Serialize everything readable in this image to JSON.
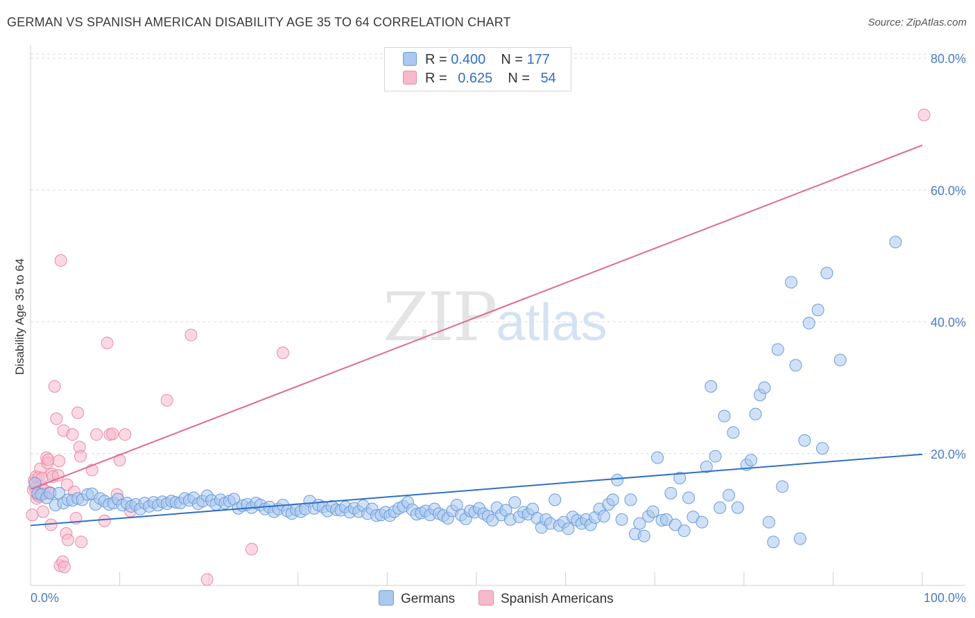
{
  "header": {
    "title": "GERMAN VS SPANISH AMERICAN DISABILITY AGE 35 TO 64 CORRELATION CHART",
    "source": "Source: ZipAtlas.com"
  },
  "watermark": {
    "zip": "ZIP",
    "atlas": "atlas"
  },
  "legend": {
    "rows": [
      {
        "r_label": "R = ",
        "r_value": "0.400",
        "n_label": "N = ",
        "n_value": "177",
        "color": "#aac8f0"
      },
      {
        "r_label": "R = ",
        "r_value": "0.625",
        "n_label": "N = ",
        "n_value": "54",
        "color": "#f7b9cc"
      }
    ]
  },
  "bottom_legend": {
    "germans": "Germans",
    "spanish": "Spanish Americans"
  },
  "colors": {
    "blue_fill": "#aac8f0",
    "blue_stroke": "#6a9bd8",
    "blue_line": "#2f6fc4",
    "pink_fill": "#f7b9cc",
    "pink_stroke": "#e88aa8",
    "pink_line": "#e06a92"
  },
  "chart_data": {
    "type": "scatter",
    "title": "GERMAN VS SPANISH AMERICAN DISABILITY AGE 35 TO 64 CORRELATION CHART",
    "xlabel": "",
    "ylabel": "Disability Age 35 to 64",
    "xlim": [
      0,
      100
    ],
    "ylim": [
      0,
      82
    ],
    "x_tick_labels": [
      "0.0%",
      "100.0%"
    ],
    "y_ticks": [
      20,
      40,
      60,
      80
    ],
    "y_tick_labels": [
      "20.0%",
      "40.0%",
      "60.0%",
      "80.0%"
    ],
    "grid": true,
    "series": [
      {
        "name": "Germans",
        "R": 0.4,
        "N": 177,
        "trend": {
          "x": [
            0,
            100
          ],
          "y": [
            9.1,
            19.9
          ]
        },
        "points": [
          [
            0.5,
            15.5
          ],
          [
            0.8,
            14.0
          ],
          [
            1.2,
            13.8
          ],
          [
            1.8,
            13.3
          ],
          [
            2.2,
            14.0
          ],
          [
            2.8,
            12.2
          ],
          [
            3.2,
            14.0
          ],
          [
            3.7,
            12.5
          ],
          [
            4.2,
            13.0
          ],
          [
            4.7,
            12.9
          ],
          [
            5.3,
            13.2
          ],
          [
            5.8,
            13.0
          ],
          [
            6.4,
            13.8
          ],
          [
            6.9,
            13.9
          ],
          [
            7.3,
            12.3
          ],
          [
            7.8,
            13.2
          ],
          [
            8.3,
            12.8
          ],
          [
            8.8,
            12.3
          ],
          [
            9.3,
            12.5
          ],
          [
            9.8,
            13.1
          ],
          [
            10.3,
            12.2
          ],
          [
            10.8,
            12.5
          ],
          [
            11.3,
            12.0
          ],
          [
            11.8,
            12.3
          ],
          [
            12.3,
            11.6
          ],
          [
            12.8,
            12.5
          ],
          [
            13.3,
            12.0
          ],
          [
            13.8,
            12.6
          ],
          [
            14.3,
            12.2
          ],
          [
            14.8,
            12.7
          ],
          [
            15.3,
            12.4
          ],
          [
            15.8,
            12.8
          ],
          [
            16.3,
            12.6
          ],
          [
            16.8,
            12.5
          ],
          [
            17.3,
            13.2
          ],
          [
            17.8,
            12.9
          ],
          [
            18.3,
            13.3
          ],
          [
            18.8,
            12.4
          ],
          [
            19.3,
            12.8
          ],
          [
            19.8,
            13.6
          ],
          [
            20.3,
            12.9
          ],
          [
            20.8,
            12.3
          ],
          [
            21.3,
            13.0
          ],
          [
            21.8,
            12.5
          ],
          [
            22.3,
            12.8
          ],
          [
            22.8,
            13.1
          ],
          [
            23.3,
            11.7
          ],
          [
            23.8,
            12.1
          ],
          [
            24.3,
            12.3
          ],
          [
            24.8,
            11.8
          ],
          [
            25.3,
            12.5
          ],
          [
            25.8,
            12.2
          ],
          [
            26.3,
            11.6
          ],
          [
            26.8,
            11.9
          ],
          [
            27.3,
            11.2
          ],
          [
            27.8,
            11.6
          ],
          [
            28.3,
            12.2
          ],
          [
            28.8,
            11.3
          ],
          [
            29.3,
            10.9
          ],
          [
            29.8,
            11.5
          ],
          [
            30.3,
            11.2
          ],
          [
            30.8,
            11.6
          ],
          [
            31.3,
            12.8
          ],
          [
            31.8,
            11.7
          ],
          [
            32.3,
            12.2
          ],
          [
            32.8,
            11.9
          ],
          [
            33.3,
            11.3
          ],
          [
            33.8,
            12.0
          ],
          [
            34.3,
            11.5
          ],
          [
            34.8,
            11.4
          ],
          [
            35.3,
            11.9
          ],
          [
            35.8,
            11.1
          ],
          [
            36.3,
            11.7
          ],
          [
            36.8,
            11.2
          ],
          [
            37.3,
            12.1
          ],
          [
            37.8,
            10.9
          ],
          [
            38.3,
            11.6
          ],
          [
            38.8,
            10.6
          ],
          [
            39.3,
            10.7
          ],
          [
            39.8,
            11.1
          ],
          [
            40.3,
            10.6
          ],
          [
            40.8,
            11.2
          ],
          [
            41.3,
            11.7
          ],
          [
            41.8,
            12.0
          ],
          [
            42.3,
            12.6
          ],
          [
            42.8,
            11.5
          ],
          [
            43.3,
            10.8
          ],
          [
            43.8,
            11.0
          ],
          [
            44.3,
            11.3
          ],
          [
            44.8,
            10.7
          ],
          [
            45.3,
            11.6
          ],
          [
            45.8,
            10.9
          ],
          [
            46.3,
            10.6
          ],
          [
            46.8,
            10.2
          ],
          [
            47.3,
            11.3
          ],
          [
            47.8,
            12.2
          ],
          [
            48.3,
            10.7
          ],
          [
            48.8,
            10.1
          ],
          [
            49.3,
            11.3
          ],
          [
            49.8,
            11.1
          ],
          [
            50.3,
            11.7
          ],
          [
            50.8,
            10.9
          ],
          [
            51.3,
            10.5
          ],
          [
            51.8,
            9.9
          ],
          [
            52.3,
            11.8
          ],
          [
            52.8,
            10.7
          ],
          [
            53.3,
            11.4
          ],
          [
            53.8,
            10.0
          ],
          [
            54.3,
            12.6
          ],
          [
            54.8,
            10.4
          ],
          [
            55.3,
            11.1
          ],
          [
            55.8,
            10.8
          ],
          [
            56.3,
            11.6
          ],
          [
            56.8,
            10.2
          ],
          [
            57.3,
            8.8
          ],
          [
            57.8,
            10.0
          ],
          [
            58.3,
            9.4
          ],
          [
            58.8,
            13.0
          ],
          [
            59.3,
            9.1
          ],
          [
            59.8,
            9.6
          ],
          [
            60.3,
            8.6
          ],
          [
            60.8,
            10.4
          ],
          [
            61.3,
            9.9
          ],
          [
            61.8,
            9.4
          ],
          [
            62.3,
            10.0
          ],
          [
            62.8,
            9.2
          ],
          [
            63.3,
            10.3
          ],
          [
            63.8,
            11.6
          ],
          [
            64.3,
            10.5
          ],
          [
            64.8,
            12.3
          ],
          [
            65.3,
            13.0
          ],
          [
            65.8,
            16.0
          ],
          [
            66.3,
            10.0
          ],
          [
            67.3,
            13.0
          ],
          [
            67.8,
            7.8
          ],
          [
            68.3,
            9.4
          ],
          [
            68.8,
            7.5
          ],
          [
            69.3,
            10.5
          ],
          [
            69.8,
            11.2
          ],
          [
            70.3,
            19.4
          ],
          [
            70.8,
            9.9
          ],
          [
            71.3,
            10.0
          ],
          [
            71.8,
            14.0
          ],
          [
            72.3,
            9.2
          ],
          [
            72.8,
            16.3
          ],
          [
            73.3,
            8.3
          ],
          [
            73.8,
            13.3
          ],
          [
            74.3,
            10.4
          ],
          [
            75.3,
            9.6
          ],
          [
            75.8,
            18.0
          ],
          [
            76.3,
            30.2
          ],
          [
            76.8,
            19.6
          ],
          [
            77.3,
            11.8
          ],
          [
            77.8,
            25.7
          ],
          [
            78.3,
            13.7
          ],
          [
            78.8,
            23.2
          ],
          [
            79.3,
            11.8
          ],
          [
            80.3,
            18.3
          ],
          [
            80.8,
            19.0
          ],
          [
            81.3,
            26.0
          ],
          [
            81.8,
            28.9
          ],
          [
            82.3,
            30.0
          ],
          [
            82.8,
            9.6
          ],
          [
            83.3,
            6.6
          ],
          [
            83.8,
            35.8
          ],
          [
            84.3,
            15.0
          ],
          [
            85.3,
            46.0
          ],
          [
            85.8,
            33.4
          ],
          [
            86.3,
            7.1
          ],
          [
            86.8,
            22.0
          ],
          [
            87.3,
            39.8
          ],
          [
            88.3,
            41.8
          ],
          [
            88.8,
            20.8
          ],
          [
            89.3,
            47.4
          ],
          [
            90.8,
            34.2
          ],
          [
            97.0,
            52.1
          ]
        ]
      },
      {
        "name": "Spanish Americans",
        "R": 0.625,
        "N": 54,
        "trend": {
          "x": [
            0,
            100
          ],
          "y": [
            14.6,
            66.8
          ]
        },
        "points": [
          [
            0.2,
            10.7
          ],
          [
            0.3,
            14.5
          ],
          [
            0.4,
            15.9
          ],
          [
            0.5,
            14.8
          ],
          [
            0.6,
            16.5
          ],
          [
            0.7,
            13.2
          ],
          [
            0.8,
            13.7
          ],
          [
            0.9,
            16.4
          ],
          [
            1.0,
            13.5
          ],
          [
            1.1,
            17.7
          ],
          [
            1.2,
            15.1
          ],
          [
            1.3,
            16.3
          ],
          [
            1.4,
            11.2
          ],
          [
            1.5,
            13.9
          ],
          [
            1.6,
            14.4
          ],
          [
            1.8,
            19.4
          ],
          [
            1.9,
            18.6
          ],
          [
            2.0,
            19.1
          ],
          [
            2.2,
            14.1
          ],
          [
            2.3,
            9.2
          ],
          [
            2.4,
            16.9
          ],
          [
            2.5,
            16.5
          ],
          [
            2.7,
            30.2
          ],
          [
            2.9,
            25.3
          ],
          [
            3.1,
            16.7
          ],
          [
            3.2,
            18.9
          ],
          [
            3.3,
            3.0
          ],
          [
            3.4,
            49.3
          ],
          [
            3.6,
            3.6
          ],
          [
            3.7,
            23.5
          ],
          [
            3.8,
            2.8
          ],
          [
            4.0,
            7.9
          ],
          [
            4.1,
            15.3
          ],
          [
            4.2,
            6.9
          ],
          [
            4.7,
            22.9
          ],
          [
            4.9,
            14.2
          ],
          [
            5.1,
            10.2
          ],
          [
            5.3,
            26.2
          ],
          [
            5.5,
            21.0
          ],
          [
            5.6,
            19.6
          ],
          [
            5.7,
            6.6
          ],
          [
            6.9,
            17.5
          ],
          [
            7.4,
            22.9
          ],
          [
            8.3,
            9.8
          ],
          [
            8.6,
            36.8
          ],
          [
            8.9,
            22.9
          ],
          [
            9.2,
            23.0
          ],
          [
            9.7,
            13.8
          ],
          [
            10.0,
            19.0
          ],
          [
            10.6,
            22.9
          ],
          [
            11.2,
            11.3
          ],
          [
            15.3,
            28.1
          ],
          [
            18.0,
            38.0
          ],
          [
            19.8,
            0.9
          ],
          [
            24.8,
            5.5
          ],
          [
            28.3,
            35.3
          ],
          [
            100.2,
            71.4
          ]
        ]
      }
    ]
  }
}
